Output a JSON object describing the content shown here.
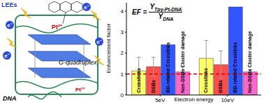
{
  "chart_data": {
    "type": "bar",
    "categories": [
      "5eV",
      "10eV"
    ],
    "x_label": "Electron energy",
    "y_label": "Enhancement factor",
    "ylim": [
      0,
      4.4
    ],
    "yticks": [
      0,
      1,
      2,
      3,
      4
    ],
    "grid": false,
    "series": [
      {
        "name": "Crosslinks",
        "color": "#ffff66",
        "values": [
          1.15,
          1.75
        ],
        "errors": [
          0.65,
          0.85
        ]
      },
      {
        "name": "DSBs",
        "color": "#ff4d4d",
        "values": [
          1.35,
          1.45
        ],
        "errors": [
          0.45,
          0.65
        ]
      },
      {
        "name": "BD-related Crosslinks",
        "color": "#3355ff",
        "values": [
          2.4,
          4.2
        ]
      },
      {
        "name": "Non-DSBs Cluster damage",
        "color": "#ff66cc",
        "values": [
          1.1,
          1.1
        ],
        "errors": [
          0.25,
          0.1
        ]
      }
    ],
    "reference_lines": [
      {
        "value": 1,
        "color": "#e00000",
        "line_style": "dashed"
      }
    ],
    "formula": {
      "lhs": "EF =",
      "numerator": "Y",
      "numerator_sub": "Tpy-Pt-DNA",
      "denominator": "Y",
      "denominator_sub": "DNA"
    }
  },
  "diagram": {
    "lees": "LEEs",
    "electron": "e⁻",
    "platinum": "Pt²⁺",
    "g_quadruplex": "G-quadruplex",
    "dna": "DNA"
  }
}
